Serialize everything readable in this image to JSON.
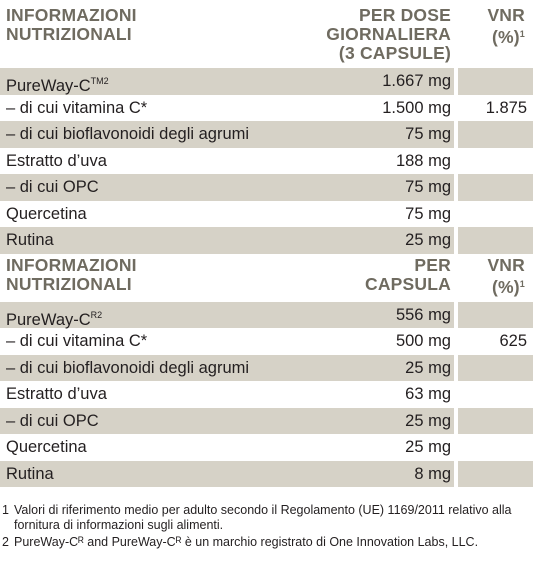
{
  "table1": {
    "header": {
      "left_line1": "INFORMAZIONI",
      "left_line2": "NUTRIZIONALI",
      "mid_line1": "PER DOSE",
      "mid_line2": "GIORNALIERA",
      "mid_line3": "(3 CAPSULE)",
      "right_line1": "VNR",
      "right_line2": "(%)",
      "right_sup": "1"
    },
    "rows": [
      {
        "name": "PureWay-C",
        "sup": "TM2",
        "dose": "1.667 mg",
        "vnr": ""
      },
      {
        "name": "– di cui vitamina C*",
        "sup": "",
        "dose": "1.500 mg",
        "vnr": "1.875"
      },
      {
        "name": "– di cui bioflavonoidi degli agrumi",
        "sup": "",
        "dose": "75 mg",
        "vnr": ""
      },
      {
        "name": "Estratto d’uva",
        "sup": "",
        "dose": "188 mg",
        "vnr": ""
      },
      {
        "name": "– di cui OPC",
        "sup": "",
        "dose": "75 mg",
        "vnr": ""
      },
      {
        "name": "Quercetina",
        "sup": "",
        "dose": "75 mg",
        "vnr": ""
      },
      {
        "name": "Rutina",
        "sup": "",
        "dose": "25 mg",
        "vnr": ""
      }
    ]
  },
  "table2": {
    "header": {
      "left_line1": "INFORMAZIONI",
      "left_line2": "NUTRIZIONALI",
      "mid_line1": "PER",
      "mid_line2": "CAPSULA",
      "right_line1": "VNR",
      "right_line2": "(%)",
      "right_sup": "1"
    },
    "rows": [
      {
        "name": "PureWay-C",
        "sup": "R2",
        "dose": "556 mg",
        "vnr": ""
      },
      {
        "name": "– di cui vitamina C*",
        "sup": "",
        "dose": "500 mg",
        "vnr": "625"
      },
      {
        "name": "– di cui bioflavonoidi degli agrumi",
        "sup": "",
        "dose": "25 mg",
        "vnr": ""
      },
      {
        "name": "Estratto d’uva",
        "sup": "",
        "dose": "63 mg",
        "vnr": ""
      },
      {
        "name": "– di cui OPC",
        "sup": "",
        "dose": "25 mg",
        "vnr": ""
      },
      {
        "name": "Quercetina",
        "sup": "",
        "dose": "25 mg",
        "vnr": ""
      },
      {
        "name": "Rutina",
        "sup": "",
        "dose": "8 mg",
        "vnr": ""
      }
    ]
  },
  "footnotes": [
    {
      "num": "1",
      "text": "Valori di riferimento medio per adulto secondo il Regolamento (UE) 1169/2011 relativo alla fornitura di informazioni sugli alimenti."
    },
    {
      "num": "2",
      "text": "PureWay-Cᴿ and PureWay-Cᴿ è un marchio registrato di One Innovation Labs, LLC."
    }
  ],
  "colors": {
    "header_text": "#6f6b60",
    "shaded_row": "#d6d2c7",
    "text": "#231f20"
  }
}
